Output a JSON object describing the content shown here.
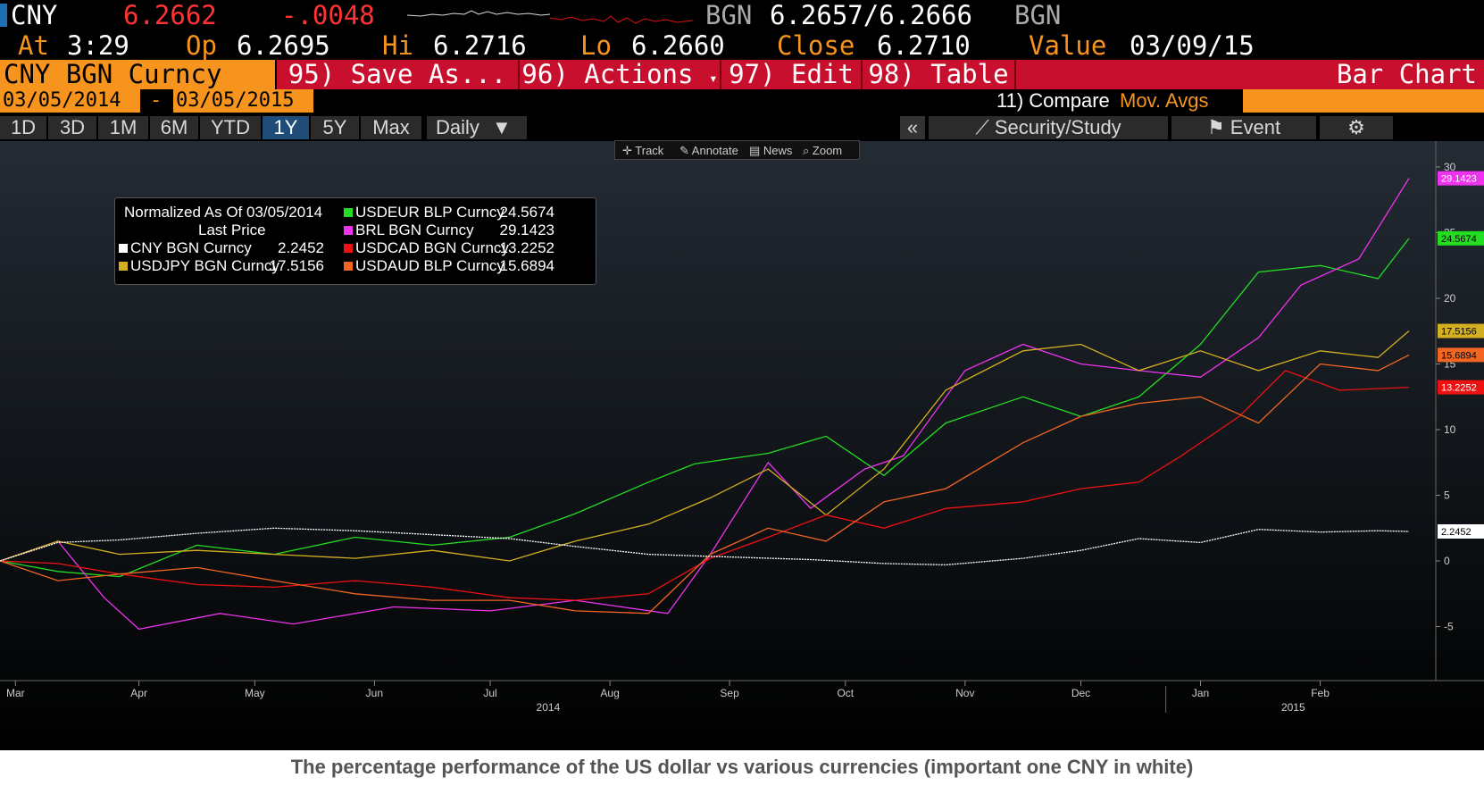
{
  "quote": {
    "ticker": "CNY",
    "last": "6.2662",
    "change": "-.0048",
    "bid_src": "BGN",
    "bid_ask": "6.2657/6.2666",
    "ask_src": "BGN",
    "time_label": "At",
    "time": "3:29",
    "open_label": "Op",
    "open": "6.2695",
    "high_label": "Hi",
    "high": "6.2716",
    "low_label": "Lo",
    "low": "6.2660",
    "close_label": "Close",
    "close": "6.2710",
    "value_label": "Value",
    "value_date": "03/09/15"
  },
  "menubar": {
    "security": "CNY BGN Curncy",
    "save_as": "95) Save As...",
    "actions": "96) Actions",
    "edit": "97) Edit",
    "table": "98) Table",
    "chart_type": "Bar Chart"
  },
  "daterange": {
    "start": "03/05/2014",
    "sep": "-",
    "end": "03/05/2015",
    "compare": "11) Compare",
    "mov_avgs": "Mov. Avgs"
  },
  "periods": {
    "tabs": [
      "1D",
      "3D",
      "1M",
      "6M",
      "YTD",
      "1Y",
      "5Y",
      "Max"
    ],
    "active": "1Y",
    "frequency": "Daily",
    "collapse": "«",
    "security_study": "Security/Study",
    "event": "Event",
    "settings_icon": "gear-icon"
  },
  "minitoolbar": [
    "Track",
    "Annotate",
    "News",
    "Zoom"
  ],
  "legend": {
    "title": "Normalized As Of 03/05/2014",
    "subtitle": "Last Price"
  },
  "caption": "The percentage performance of the US dollar vs various currencies (important one CNY in white)",
  "colors": {
    "background": "#000000",
    "menu_red": "#c8102e",
    "orange": "#f7941d",
    "quote_red": "#ff3333",
    "label_orange": "#f7941d"
  },
  "chart_data": {
    "type": "line",
    "xlabel": "",
    "ylabel": "",
    "ylim": [
      -7.5,
      31
    ],
    "y_ticks": [
      -5,
      0,
      5,
      10,
      15,
      20,
      25,
      30
    ],
    "y_tick_labels": [
      "-5",
      "0",
      "5",
      "10",
      "15",
      "20",
      "25",
      "30"
    ],
    "x_range": [
      "2014-03-05",
      "2015-03-05"
    ],
    "x_ticks": [
      {
        "date": "2014-03-09",
        "label": "Mar"
      },
      {
        "date": "2014-04-10",
        "label": "Apr"
      },
      {
        "date": "2014-05-10",
        "label": "May"
      },
      {
        "date": "2014-06-10",
        "label": "Jun"
      },
      {
        "date": "2014-07-10",
        "label": "Jul"
      },
      {
        "date": "2014-08-10",
        "label": "Aug"
      },
      {
        "date": "2014-09-10",
        "label": "Sep"
      },
      {
        "date": "2014-10-10",
        "label": "Oct"
      },
      {
        "date": "2014-11-10",
        "label": "Nov"
      },
      {
        "date": "2014-12-10",
        "label": "Dec"
      },
      {
        "date": "2015-01-10",
        "label": "Jan"
      },
      {
        "date": "2015-02-10",
        "label": "Feb"
      }
    ],
    "year_labels": [
      {
        "date": "2014-07-25",
        "label": "2014"
      },
      {
        "date": "2015-02-03",
        "label": "2015"
      }
    ],
    "grid": false,
    "legend_position": "top-left",
    "series": [
      {
        "name": "CNY BGN Curncy",
        "last": "2.2452",
        "color": "#ffffff",
        "x": [
          "2014-03-05",
          "2014-03-20",
          "2014-04-05",
          "2014-04-25",
          "2014-05-15",
          "2014-06-05",
          "2014-06-25",
          "2014-07-15",
          "2014-08-01",
          "2014-08-20",
          "2014-09-10",
          "2014-10-01",
          "2014-10-20",
          "2014-11-05",
          "2014-11-25",
          "2014-12-10",
          "2014-12-25",
          "2015-01-10",
          "2015-01-25",
          "2015-02-10",
          "2015-02-25",
          "2015-03-05"
        ],
        "y": [
          0,
          1.4,
          1.6,
          2.1,
          2.5,
          2.3,
          2.0,
          1.7,
          1.1,
          0.5,
          0.3,
          0.1,
          -0.2,
          -0.3,
          0.2,
          0.8,
          1.7,
          1.4,
          2.4,
          2.2,
          2.3,
          2.2452
        ]
      },
      {
        "name": "USDEUR BLP Curncy",
        "last": "24.5674",
        "color": "#22dd22",
        "x": [
          "2014-03-05",
          "2014-03-20",
          "2014-04-05",
          "2014-04-25",
          "2014-05-15",
          "2014-06-05",
          "2014-06-25",
          "2014-07-15",
          "2014-08-01",
          "2014-08-20",
          "2014-09-01",
          "2014-09-20",
          "2014-10-05",
          "2014-10-20",
          "2014-11-05",
          "2014-11-25",
          "2014-12-10",
          "2014-12-25",
          "2015-01-10",
          "2015-01-25",
          "2015-02-10",
          "2015-02-25",
          "2015-03-05"
        ],
        "y": [
          0,
          -0.8,
          -1.2,
          1.2,
          0.5,
          1.8,
          1.2,
          1.8,
          3.6,
          6.0,
          7.4,
          8.2,
          9.5,
          6.5,
          10.5,
          12.5,
          11.0,
          12.5,
          16.5,
          22.0,
          22.5,
          21.5,
          24.5674
        ]
      },
      {
        "name": "BRL BGN Curncy",
        "last": "29.1423",
        "color": "#ee33ee",
        "x": [
          "2014-03-05",
          "2014-03-20",
          "2014-04-01",
          "2014-04-10",
          "2014-05-01",
          "2014-05-20",
          "2014-06-15",
          "2014-07-10",
          "2014-08-01",
          "2014-08-25",
          "2014-09-05",
          "2014-09-20",
          "2014-10-01",
          "2014-10-15",
          "2014-10-25",
          "2014-11-10",
          "2014-11-25",
          "2014-12-10",
          "2014-12-25",
          "2015-01-10",
          "2015-01-25",
          "2015-02-05",
          "2015-02-20",
          "2015-03-05"
        ],
        "y": [
          0,
          1.5,
          -2.8,
          -5.2,
          -4.0,
          -4.8,
          -3.5,
          -3.8,
          -3.0,
          -4.0,
          0.5,
          7.5,
          4.0,
          7.0,
          8.0,
          14.5,
          16.5,
          15.0,
          14.5,
          14.0,
          17.0,
          21.0,
          23.0,
          29.1423
        ]
      },
      {
        "name": "USDJPY BGN Curncy",
        "last": "17.5156",
        "color": "#d4b020",
        "x": [
          "2014-03-05",
          "2014-03-20",
          "2014-04-05",
          "2014-04-25",
          "2014-05-15",
          "2014-06-05",
          "2014-06-25",
          "2014-07-15",
          "2014-08-01",
          "2014-08-20",
          "2014-09-05",
          "2014-09-20",
          "2014-10-05",
          "2014-10-20",
          "2014-11-05",
          "2014-11-25",
          "2014-12-10",
          "2014-12-25",
          "2015-01-10",
          "2015-01-25",
          "2015-02-10",
          "2015-02-25",
          "2015-03-05"
        ],
        "y": [
          0,
          1.5,
          0.5,
          0.8,
          0.5,
          0.2,
          0.8,
          0.0,
          1.5,
          2.8,
          4.8,
          7.0,
          3.5,
          7.0,
          13.0,
          16.0,
          16.5,
          14.5,
          16.0,
          14.5,
          16.0,
          15.5,
          17.5156
        ]
      },
      {
        "name": "USDCAD BGN Curncy",
        "last": "13.2252",
        "color": "#ee1111",
        "x": [
          "2014-03-05",
          "2014-03-20",
          "2014-04-05",
          "2014-04-25",
          "2014-05-15",
          "2014-06-05",
          "2014-06-25",
          "2014-07-15",
          "2014-08-01",
          "2014-08-20",
          "2014-09-05",
          "2014-09-20",
          "2014-10-05",
          "2014-10-20",
          "2014-11-05",
          "2014-11-25",
          "2014-12-10",
          "2014-12-25",
          "2015-01-05",
          "2015-01-20",
          "2015-02-01",
          "2015-02-15",
          "2015-03-05"
        ],
        "y": [
          0,
          -0.2,
          -1.0,
          -1.8,
          -2.0,
          -1.5,
          -2.0,
          -2.8,
          -3.0,
          -2.5,
          0.2,
          1.8,
          3.5,
          2.5,
          4.0,
          4.5,
          5.5,
          6.0,
          8.0,
          11.0,
          14.5,
          13.0,
          13.2252
        ]
      },
      {
        "name": "USDAUD BLP Curncy",
        "last": "15.6894",
        "color": "#f26522",
        "x": [
          "2014-03-05",
          "2014-03-20",
          "2014-04-05",
          "2014-04-25",
          "2014-05-15",
          "2014-06-05",
          "2014-06-25",
          "2014-07-15",
          "2014-08-01",
          "2014-08-20",
          "2014-09-05",
          "2014-09-20",
          "2014-10-05",
          "2014-10-20",
          "2014-11-05",
          "2014-11-25",
          "2014-12-10",
          "2014-12-25",
          "2015-01-10",
          "2015-01-25",
          "2015-02-10",
          "2015-02-25",
          "2015-03-05"
        ],
        "y": [
          0,
          -1.5,
          -1.0,
          -0.5,
          -1.5,
          -2.5,
          -3.0,
          -3.0,
          -3.8,
          -4.0,
          0.5,
          2.5,
          1.5,
          4.5,
          5.5,
          9.0,
          11.0,
          12.0,
          12.5,
          10.5,
          15.0,
          14.5,
          15.6894
        ]
      }
    ]
  }
}
